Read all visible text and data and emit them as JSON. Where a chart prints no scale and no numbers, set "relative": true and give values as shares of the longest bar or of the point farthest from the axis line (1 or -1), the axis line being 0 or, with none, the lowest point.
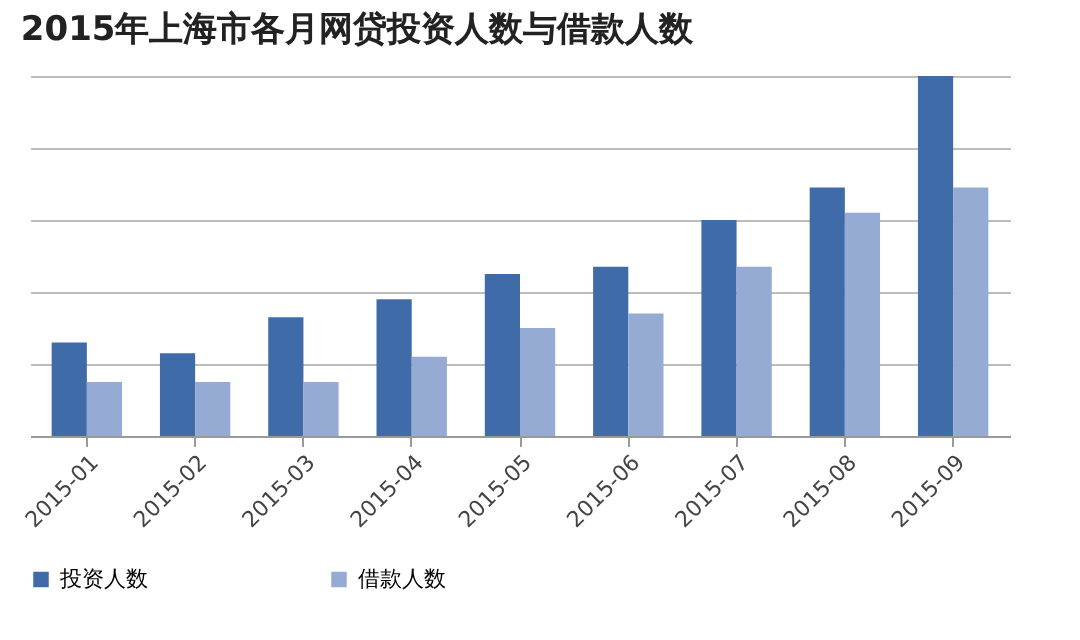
{
  "chart_data": {
    "type": "bar",
    "title": "2015年上海市各月网贷投资人数与借款人数",
    "relative": true,
    "grid": "y",
    "legend": "bottom",
    "categories": [
      "2015-01",
      "2015-02",
      "2015-03",
      "2015-04",
      "2015-05",
      "2015-06",
      "2015-07",
      "2015-08",
      "2015-09"
    ],
    "series": [
      {
        "name": "投资人数",
        "color": "#3f6ca8",
        "values": [
          0.26,
          0.23,
          0.33,
          0.38,
          0.45,
          0.47,
          0.6,
          0.69,
          1
        ]
      },
      {
        "name": "借款人数",
        "color": "#95abd3",
        "values": [
          0.15,
          0.15,
          0.15,
          0.22,
          0.3,
          0.34,
          0.47,
          0.62,
          0.69
        ]
      }
    ]
  }
}
